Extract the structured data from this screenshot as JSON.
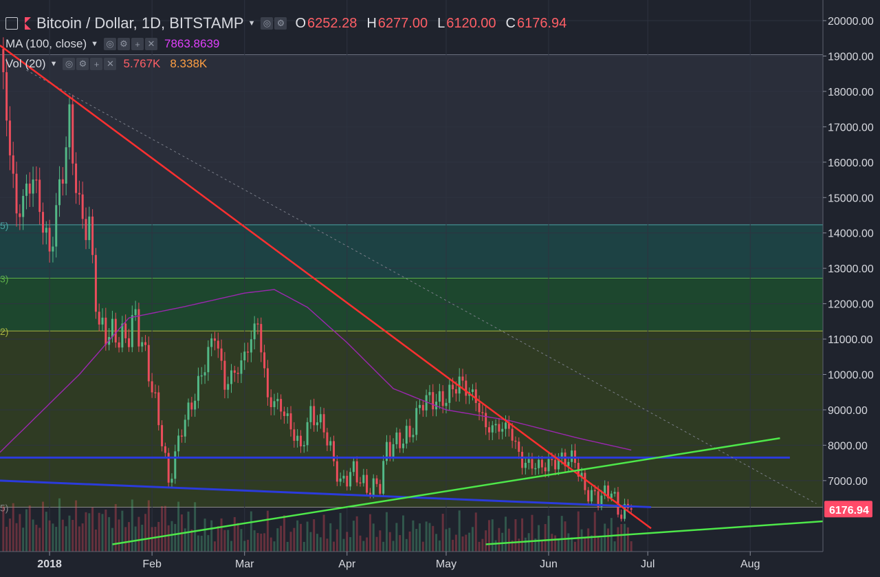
{
  "header": {
    "symbol_title": "Bitcoin / Dollar, 1D, BITSTAMP",
    "ohlc": [
      {
        "k": "O",
        "v": "6252.28"
      },
      {
        "k": "H",
        "v": "6277.00"
      },
      {
        "k": "L",
        "v": "6120.00"
      },
      {
        "k": "C",
        "v": "6176.94"
      }
    ],
    "ma_label": "MA (100, close)",
    "ma_value": "7863.8639",
    "vol_label": "Vol (20)",
    "vol_value": "5.767K",
    "vol_ma_value": "8.338K"
  },
  "colors": {
    "background": "#1f232d",
    "up_candle": "#53b987",
    "down_candle": "#eb4d5c",
    "ma_line": "#9c27b0",
    "trend_red": "#ff3030",
    "trend_green": "#4ee84a",
    "support_blue": "#2b3bdc",
    "last_price": "#ff4a68",
    "ma_value_color": "#e040fb",
    "vol_value_color": "#ff5f66",
    "vol_ma_value_color": "#ff9f43"
  },
  "chart_data": {
    "type": "candlestick",
    "title": "Bitcoin / Dollar, 1D, BITSTAMP",
    "x_tick_labels": [
      "2018",
      "Feb",
      "Mar",
      "Apr",
      "May",
      "Jun",
      "Jul",
      "Aug"
    ],
    "x_ticks_date": [
      "2018-01-01",
      "2018-02-01",
      "2018-03-01",
      "2018-04-01",
      "2018-05-01",
      "2018-06-01",
      "2018-07-01",
      "2018-08-01"
    ],
    "y_tick_labels": [
      "20000.00",
      "19000.00",
      "18000.00",
      "17000.00",
      "16000.00",
      "15000.00",
      "14000.00",
      "13000.00",
      "12000.00",
      "11000.00",
      "10000.00",
      "9000.00",
      "8000.00",
      "7000.00"
    ],
    "ylim": [
      5200,
      20200
    ],
    "x_range": [
      "2017-12-17",
      "2018-08-23"
    ],
    "last_price_label": "6176.94",
    "last_price": 6176.94,
    "grid": true,
    "fib_level_prices": [
      14230,
      12720,
      11230,
      6250
    ],
    "fib_label_fragments": [
      "5)",
      "3)",
      "2)",
      "5)"
    ],
    "candles_keypoints": [
      [
        "2017-12-17",
        19200
      ],
      [
        "2017-12-22",
        14500
      ],
      [
        "2017-12-27",
        15600
      ],
      [
        "2018-01-01",
        13400
      ],
      [
        "2018-01-04",
        15200
      ],
      [
        "2018-01-07",
        17100
      ],
      [
        "2018-01-10",
        14600
      ],
      [
        "2018-01-13",
        14100
      ],
      [
        "2018-01-16",
        11300
      ],
      [
        "2018-01-18",
        11200
      ],
      [
        "2018-01-24",
        11000
      ],
      [
        "2018-01-27",
        11600
      ],
      [
        "2018-01-31",
        10100
      ],
      [
        "2018-02-04",
        8200
      ],
      [
        "2018-02-06",
        6900
      ],
      [
        "2018-02-10",
        8500
      ],
      [
        "2018-02-14",
        9400
      ],
      [
        "2018-02-20",
        11200
      ],
      [
        "2018-02-23",
        9700
      ],
      [
        "2018-02-28",
        10300
      ],
      [
        "2018-03-05",
        11500
      ],
      [
        "2018-03-08",
        9300
      ],
      [
        "2018-03-12",
        9100
      ],
      [
        "2018-03-18",
        7900
      ],
      [
        "2018-03-21",
        8900
      ],
      [
        "2018-03-25",
        8500
      ],
      [
        "2018-03-30",
        6900
      ],
      [
        "2018-04-03",
        7300
      ],
      [
        "2018-04-07",
        6750
      ],
      [
        "2018-04-11",
        6900
      ],
      [
        "2018-04-13",
        7900
      ],
      [
        "2018-04-20",
        8300
      ],
      [
        "2018-04-24",
        9300
      ],
      [
        "2018-04-30",
        9250
      ],
      [
        "2018-05-05",
        9800
      ],
      [
        "2018-05-10",
        9300
      ],
      [
        "2018-05-13",
        8500
      ],
      [
        "2018-05-20",
        8500
      ],
      [
        "2018-05-24",
        7500
      ],
      [
        "2018-05-30",
        7400
      ],
      [
        "2018-06-05",
        7600
      ],
      [
        "2018-06-09",
        7600
      ],
      [
        "2018-06-12",
        6700
      ],
      [
        "2018-06-16",
        6500
      ],
      [
        "2018-06-20",
        6750
      ],
      [
        "2018-06-22",
        6100
      ],
      [
        "2018-06-26",
        6176.94
      ]
    ],
    "ma100_keypoints": [
      [
        "2017-12-17",
        7800
      ],
      [
        "2018-01-10",
        10000
      ],
      [
        "2018-01-25",
        11600
      ],
      [
        "2018-02-10",
        11900
      ],
      [
        "2018-03-01",
        12300
      ],
      [
        "2018-03-10",
        12400
      ],
      [
        "2018-03-20",
        11900
      ],
      [
        "2018-04-01",
        10900
      ],
      [
        "2018-04-15",
        9600
      ],
      [
        "2018-05-01",
        9000
      ],
      [
        "2018-05-20",
        8700
      ],
      [
        "2018-06-10",
        8200
      ],
      [
        "2018-06-26",
        7863.8639
      ]
    ],
    "trendlines": [
      {
        "kind": "resistance",
        "from": [
          "2017-12-17",
          19300
        ],
        "to": [
          "2018-07-02",
          5650
        ]
      },
      {
        "kind": "support",
        "from": [
          "2018-01-20",
          5200
        ],
        "to": [
          "2018-08-10",
          8200
        ]
      },
      {
        "kind": "support",
        "from": [
          "2018-05-13",
          5200
        ],
        "to": [
          "2018-08-23",
          5850
        ]
      }
    ],
    "horizontal_levels": [
      7650,
      6250
    ]
  }
}
